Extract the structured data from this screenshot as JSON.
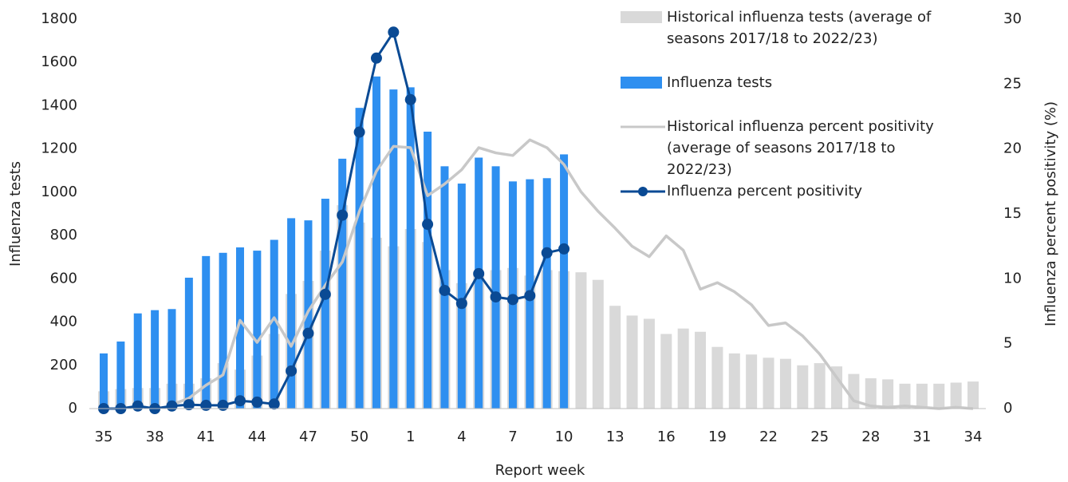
{
  "chart_data": {
    "type": "bar",
    "x_label": "Report week",
    "y_label": "Influenza tests",
    "y2_label": "Influenza percent positivity (%)",
    "categories": [
      "35",
      null,
      null,
      "38",
      null,
      null,
      "41",
      null,
      null,
      "44",
      null,
      null,
      "47",
      null,
      null,
      "50",
      null,
      null,
      "1",
      null,
      null,
      "4",
      null,
      null,
      "7",
      null,
      null,
      "10",
      null,
      null,
      "13",
      null,
      null,
      "16",
      null,
      null,
      "19",
      null,
      null,
      "22",
      null,
      null,
      "25",
      null,
      null,
      "28",
      null,
      null,
      "31",
      null,
      null,
      "34"
    ],
    "ylim": [
      0,
      1800
    ],
    "yticks": [
      0,
      200,
      400,
      600,
      800,
      1000,
      1200,
      1400,
      1600,
      1800
    ],
    "y2lim": [
      0,
      30
    ],
    "y2ticks": [
      0,
      5,
      10,
      15,
      20,
      25,
      30
    ],
    "legend": "top-right",
    "series": [
      {
        "name": "Historical influenza tests (average of seasons 2017/18 to 2022/23)",
        "type": "bar",
        "color": "#d9d9d9",
        "values": [
          80,
          90,
          95,
          95,
          115,
          115,
          140,
          210,
          180,
          245,
          345,
          530,
          590,
          730,
          940,
          860,
          790,
          750,
          830,
          770,
          640,
          580,
          620,
          640,
          650,
          615,
          640,
          635,
          630,
          595,
          475,
          430,
          415,
          345,
          370,
          355,
          285,
          255,
          250,
          235,
          230,
          200,
          210,
          195,
          160,
          140,
          135,
          115,
          115,
          115,
          120,
          125
        ]
      },
      {
        "name": "Influenza tests",
        "type": "bar",
        "color": "#2e8ff0",
        "values": [
          255,
          310,
          440,
          455,
          460,
          605,
          705,
          720,
          745,
          730,
          780,
          880,
          870,
          970,
          1155,
          1390,
          1535,
          1475,
          1485,
          1280,
          1120,
          1040,
          1160,
          1120,
          1050,
          1060,
          1065,
          1175,
          null,
          null,
          null,
          null,
          null,
          null,
          null,
          null,
          null,
          null,
          null,
          null,
          null,
          null,
          null,
          null,
          null,
          null,
          null,
          null,
          null,
          null,
          null,
          null
        ]
      },
      {
        "name": "Historical influenza percent positivity (average of seasons 2017/18 to 2022/23)",
        "type": "line",
        "axis": "y2",
        "color": "#c8c8c8",
        "markers": false,
        "values": [
          null,
          null,
          null,
          null,
          0.3,
          0.8,
          1.8,
          2.6,
          6.8,
          5.1,
          7.0,
          4.8,
          7.5,
          9.5,
          11.3,
          15.2,
          18.3,
          20.2,
          20.1,
          16.4,
          17.3,
          18.4,
          20.1,
          19.7,
          19.5,
          20.7,
          20.1,
          18.8,
          16.7,
          15.2,
          13.9,
          12.5,
          11.7,
          13.3,
          12.2,
          9.2,
          9.7,
          9.0,
          8.0,
          6.4,
          6.6,
          5.6,
          4.2,
          2.4,
          0.6,
          0.2,
          0.1,
          0.2,
          0.1,
          0,
          0.1,
          0
        ]
      },
      {
        "name": "Influenza percent positivity",
        "type": "line",
        "axis": "y2",
        "color": "#0a4a94",
        "markers": true,
        "values": [
          0,
          0,
          0.2,
          0,
          0.2,
          0.3,
          0.25,
          0.25,
          0.6,
          0.5,
          0.35,
          2.9,
          5.8,
          8.8,
          14.9,
          21.3,
          27,
          29,
          23.8,
          14.2,
          9.1,
          8.1,
          10.4,
          8.6,
          8.4,
          8.7,
          12,
          12.3,
          null,
          null,
          null,
          null,
          null,
          null,
          null,
          null,
          null,
          null,
          null,
          null,
          null,
          null,
          null,
          null,
          null,
          null,
          null,
          null,
          null,
          null,
          null,
          null
        ]
      }
    ]
  }
}
